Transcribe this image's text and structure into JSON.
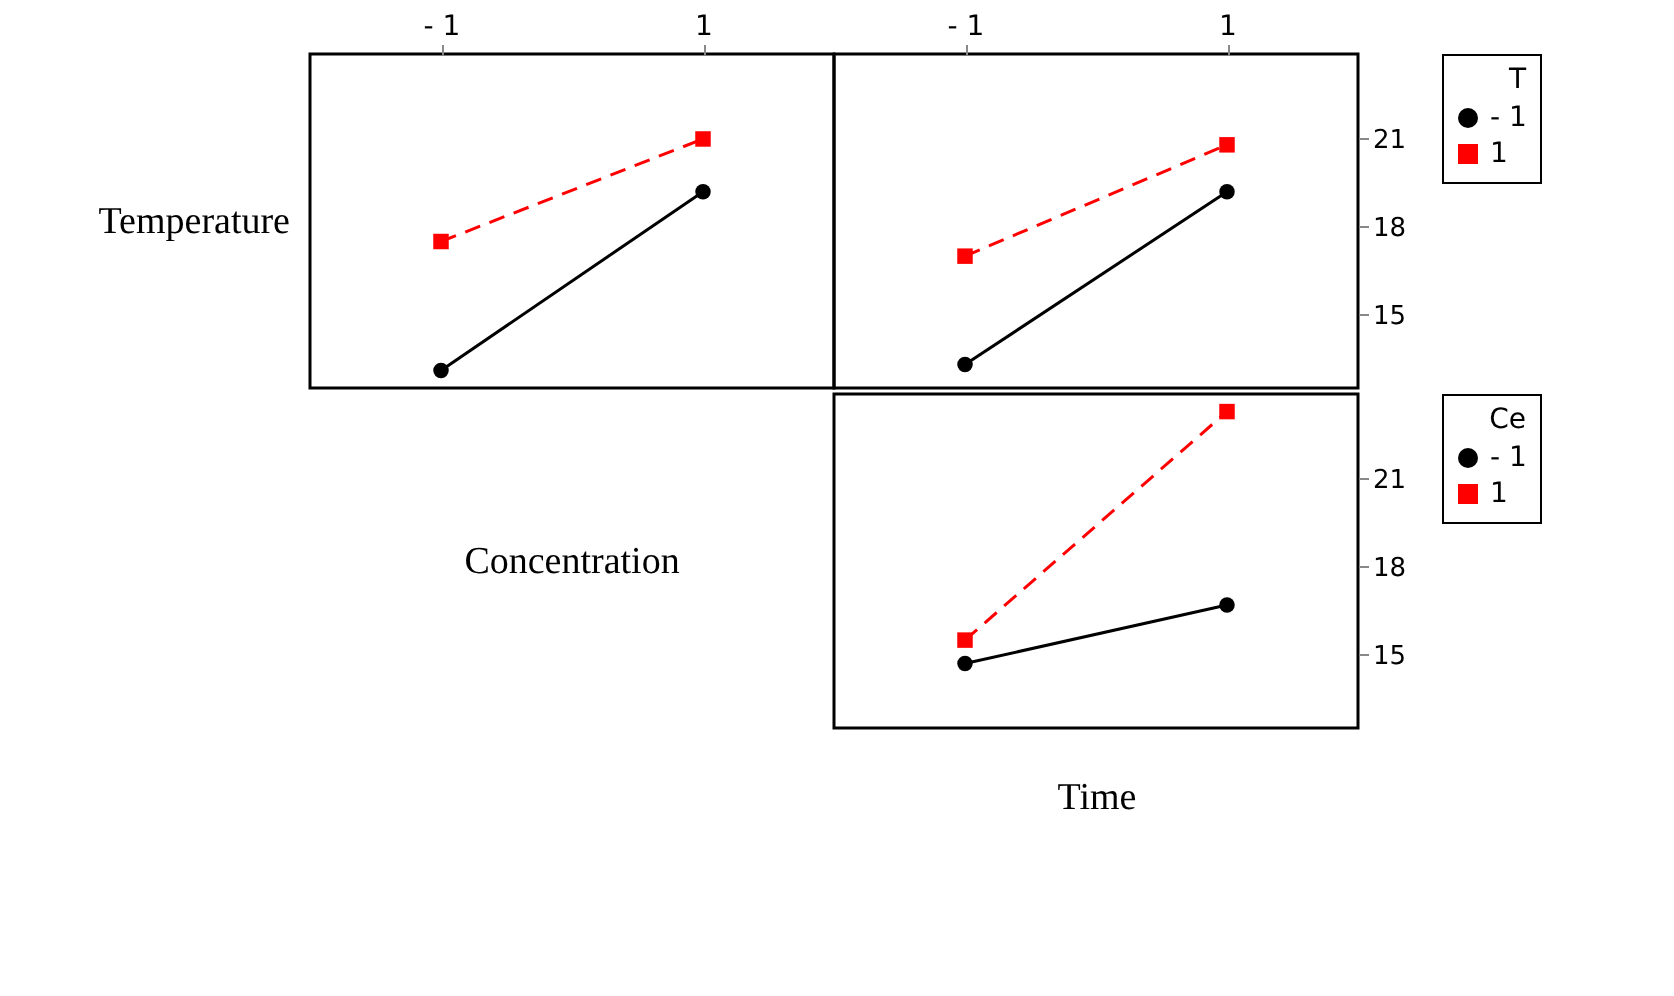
{
  "chart_data": [
    {
      "type": "line",
      "ylabel": "Temperature",
      "categories": [
        "- 1",
        "1"
      ],
      "ylim": [
        12.5,
        23.9
      ],
      "yticks": [
        15,
        18,
        21
      ],
      "tick_labels": "x",
      "grid": false,
      "series": [
        {
          "color": "#000000",
          "values": [
            13.1,
            19.2
          ],
          "marker": "circle",
          "line_style": "solid"
        },
        {
          "color": "#ff0000",
          "values": [
            17.5,
            21.0
          ],
          "marker": "square",
          "line_style": "dashed"
        }
      ]
    },
    {
      "type": "line",
      "legend_title": "T",
      "categories": [
        "- 1",
        "1"
      ],
      "ylim": [
        12.5,
        23.9
      ],
      "yticks": [
        15,
        18,
        21
      ],
      "grid": false,
      "legend": "right",
      "series": [
        {
          "name": "- 1",
          "color": "#000000",
          "values": [
            13.3,
            19.2
          ],
          "marker": "circle",
          "line_style": "solid"
        },
        {
          "name": "1",
          "color": "#ff0000",
          "values": [
            17.0,
            20.8
          ],
          "marker": "square",
          "line_style": "dashed"
        }
      ]
    },
    {
      "type": "line",
      "ylabel": "Concentration",
      "xlabel": "Time",
      "legend_title": "Ce",
      "categories": [
        null,
        null
      ],
      "ylim": [
        12.5,
        23.9
      ],
      "yticks": [
        15,
        18,
        21
      ],
      "tick_labels": "y",
      "grid": false,
      "legend": "right",
      "series": [
        {
          "name": "- 1",
          "color": "#000000",
          "values": [
            14.7,
            16.7
          ],
          "marker": "circle",
          "line_style": "solid"
        },
        {
          "name": "1",
          "color": "#ff0000",
          "values": [
            15.5,
            23.3
          ],
          "marker": "square",
          "line_style": "dashed"
        }
      ]
    }
  ]
}
